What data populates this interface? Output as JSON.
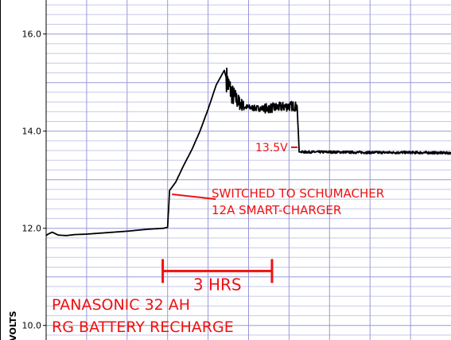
{
  "chart_data": {
    "type": "line",
    "ylabel": "VOLTS",
    "ylim": [
      9.7,
      16.7
    ],
    "xlim": [
      0,
      10
    ],
    "yticks": [
      10.0,
      12.0,
      14.0,
      16.0
    ],
    "ytick_labels": [
      "10.0",
      "12.0",
      "14.0",
      "16.0"
    ],
    "grid": true,
    "series": [
      {
        "x": [
          0.0,
          0.05,
          0.15,
          0.3,
          0.5,
          0.7,
          1.0,
          1.5,
          2.0,
          2.5,
          2.9,
          3.0,
          3.05,
          3.2,
          3.4,
          3.6,
          3.8,
          4.0,
          4.2,
          4.4,
          4.5,
          4.6,
          4.75,
          4.9,
          5.2,
          5.5,
          5.8,
          6.1,
          6.2,
          6.25,
          7.0,
          8.0,
          9.0,
          10.0
        ],
        "y": [
          11.85,
          11.88,
          11.92,
          11.86,
          11.85,
          11.87,
          11.88,
          11.91,
          11.94,
          11.98,
          12.0,
          12.02,
          12.78,
          12.95,
          13.3,
          13.62,
          14.0,
          14.45,
          14.95,
          15.25,
          14.95,
          14.75,
          14.6,
          14.5,
          14.47,
          14.47,
          14.5,
          14.52,
          14.5,
          13.57,
          13.57,
          13.56,
          13.56,
          13.55
        ]
      }
    ],
    "annotations": [
      {
        "text": "SWITCHED TO SCHUMACHER",
        "x": 3.05,
        "y": 12.6
      },
      {
        "text": "12A SMART-CHARGER",
        "x": 3.05,
        "y": 12.2
      },
      {
        "text": "13.5V",
        "x": 6.25,
        "y": 13.55
      },
      {
        "text": "3 HRS",
        "x_start": 2.9,
        "x_end": 5.5,
        "y": 11.35
      }
    ],
    "title_lines": [
      "PANASONIC 32 AH",
      "RG BATTERY RECHARGE"
    ]
  },
  "colors": {
    "trace": "#000000",
    "annotation": "#ee1111",
    "grid_major": "#9898d8",
    "grid_minor": "#c8c8ec"
  }
}
